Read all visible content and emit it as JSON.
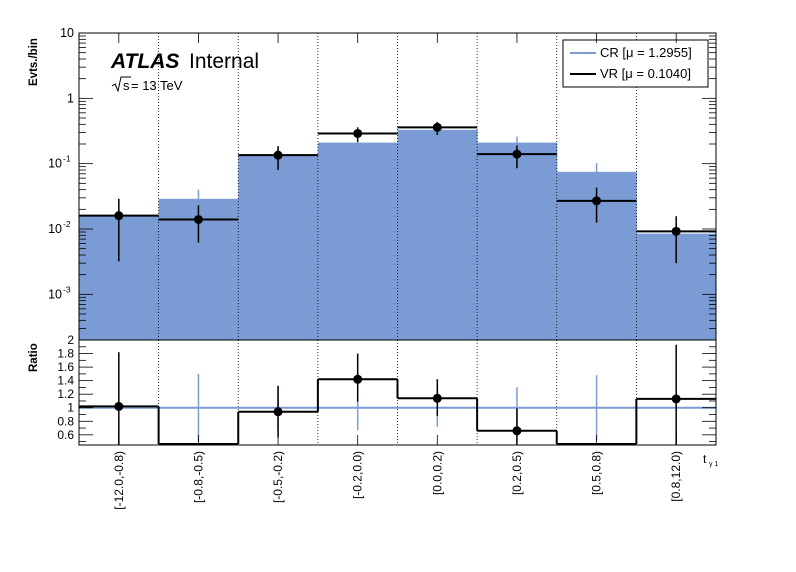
{
  "chart_data": [
    {
      "type": "histogram",
      "panel": "main",
      "ylabel": "Evts./bin",
      "yscale": "log",
      "ylim": [
        0.0002,
        10
      ],
      "y_tick_labels": [
        "10",
        "1",
        "10",
        "10",
        "10",
        "10"
      ],
      "y_tick_exponents": [
        "",
        "",
        "-1",
        "-2",
        "-3",
        ""
      ],
      "y_tick_values": [
        10,
        1,
        0.1,
        0.01,
        0.001
      ],
      "categories": [
        "[-12.0,-0.8)",
        "[-0.8,-0.5)",
        "[-0.5,-0.2)",
        "[-0.2,0.0)",
        "[0.0,0.2)",
        "[0.2,0.5)",
        "[0.5,0.8)",
        "[0.8,12.0)"
      ],
      "series": [
        {
          "name": "CR [μ = 1.2955]",
          "style": "filled-histogram",
          "color": "#7a9bd3",
          "values": [
            0.016,
            0.029,
            0.14,
            0.21,
            0.33,
            0.21,
            0.075,
            0.0085
          ],
          "errors": [
            0.006,
            0.011,
            0.045,
            0.07,
            0.09,
            0.05,
            0.027,
            0.0035
          ]
        },
        {
          "name": "VR [μ = 0.1040]",
          "style": "markers-with-errors",
          "color": "#000000",
          "values": [
            0.016,
            0.014,
            0.135,
            0.29,
            0.36,
            0.14,
            0.027,
            0.0092
          ],
          "err_low": [
            0.0128,
            0.0078,
            0.055,
            0.075,
            0.085,
            0.055,
            0.0145,
            0.0062
          ],
          "err_high": [
            0.013,
            0.009,
            0.05,
            0.07,
            0.075,
            0.05,
            0.016,
            0.0065
          ]
        }
      ],
      "annotations": {
        "experiment": "ATLAS",
        "status": "Internal",
        "energy_sqrt": "s",
        "energy_rest": " = 13 TeV"
      },
      "legend_position": "top-right",
      "grid": "vertical dotted lines at bin edges"
    },
    {
      "type": "ratio",
      "panel": "ratio",
      "ylabel": "Ratio",
      "ylim": [
        0.45,
        2.0
      ],
      "y_tick_labels": [
        "2",
        "1.8",
        "1.6",
        "1.4",
        "1.2",
        "1",
        "0.8",
        "0.6"
      ],
      "y_tick_values": [
        2.0,
        1.8,
        1.6,
        1.4,
        1.2,
        1.0,
        0.8,
        0.6
      ],
      "reference_line": 1.0,
      "cr_band_halfwidth": [
        0.05,
        0.5,
        0.33,
        0.33,
        0.28,
        0.3,
        0.48,
        0.05
      ],
      "values": [
        1.02,
        0.4,
        0.94,
        1.42,
        1.14,
        0.66,
        0.4,
        1.13
      ],
      "err_low": [
        0.8,
        0.0,
        0.38,
        0.33,
        0.26,
        0.33,
        0.0,
        0.8
      ],
      "err_high": [
        0.8,
        0.0,
        0.38,
        0.38,
        0.28,
        0.33,
        0.0,
        0.8
      ],
      "markers": [
        true,
        false,
        true,
        true,
        true,
        true,
        false,
        true
      ],
      "xlabel": "t",
      "xlabel_sub": "γ 1"
    }
  ],
  "legend": {
    "entries": [
      {
        "label": "CR [μ = 1.2955]",
        "color": "#7a9bd3"
      },
      {
        "label": "VR [μ = 0.1040]",
        "color": "#000000"
      }
    ]
  }
}
